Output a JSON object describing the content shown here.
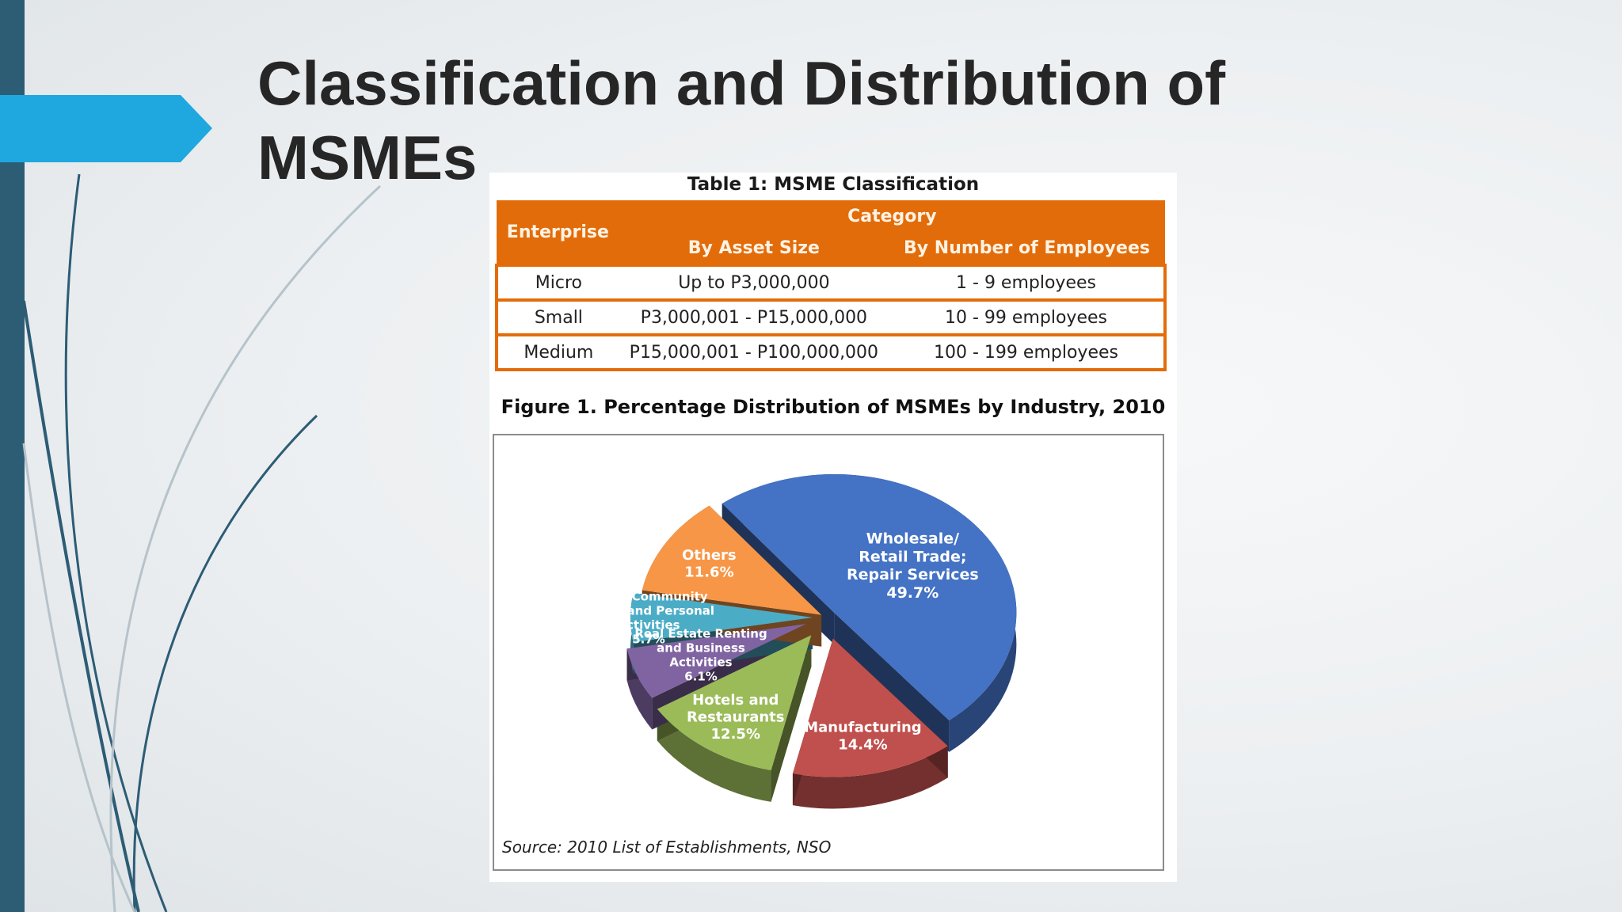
{
  "slide": {
    "title": "Classification and Distribution of MSMEs",
    "accent_color": "#1fa8e0",
    "sidebar_color": "#2d5c75"
  },
  "table": {
    "caption": "Table 1: MSME Classification",
    "header_color": "#e36c0a",
    "enterprise_header": "Enterprise",
    "category_header": "Category",
    "asset_header": "By Asset Size",
    "employees_header": "By Number of Employees",
    "rows": [
      {
        "enterprise": "Micro",
        "asset": "Up to P3,000,000",
        "employees": "1 - 9 employees"
      },
      {
        "enterprise": "Small",
        "asset": "P3,000,001 - P15,000,000",
        "employees": "10 - 99 employees"
      },
      {
        "enterprise": "Medium",
        "asset": "P15,000,001 - P100,000,000",
        "employees": "100 - 199 employees"
      }
    ]
  },
  "figure": {
    "caption": "Figure 1. Percentage Distribution of MSMEs by Industry, 2010",
    "source": "Source: 2010 List of Establishments, NSO"
  },
  "chart_data": {
    "type": "pie",
    "title": "Figure 1. Percentage Distribution of MSMEs by Industry, 2010",
    "slices": [
      {
        "label": "Wholesale/ Retail Trade; Repair Services",
        "label_lines": [
          "Wholesale/",
          "Retail Trade;",
          "Repair Services"
        ],
        "value": 49.7,
        "value_label": "49.7%",
        "color": "#4472c4"
      },
      {
        "label": "Manufacturing",
        "label_lines": [
          "Manufacturing"
        ],
        "value": 14.4,
        "value_label": "14.4%",
        "color": "#c0504d"
      },
      {
        "label": "Hotels and Restaurants",
        "label_lines": [
          "Hotels and",
          "Restaurants"
        ],
        "value": 12.5,
        "value_label": "12.5%",
        "color": "#9bbb59"
      },
      {
        "label": "Real Estate Renting and Business Activities",
        "label_lines": [
          "Real Estate Renting",
          "and Business",
          "Activities"
        ],
        "value": 6.1,
        "value_label": "6.1%",
        "color": "#8064a2"
      },
      {
        "label": "Other Community Social and Personal Activities",
        "label_lines": [
          "Other Community",
          "Social and Personal",
          "Activities"
        ],
        "value": 5.7,
        "value_label": "5.7%",
        "color": "#4bacc6"
      },
      {
        "label": "Others",
        "label_lines": [
          "Others"
        ],
        "value": 11.6,
        "value_label": "11.6%",
        "color": "#f79646"
      }
    ]
  }
}
